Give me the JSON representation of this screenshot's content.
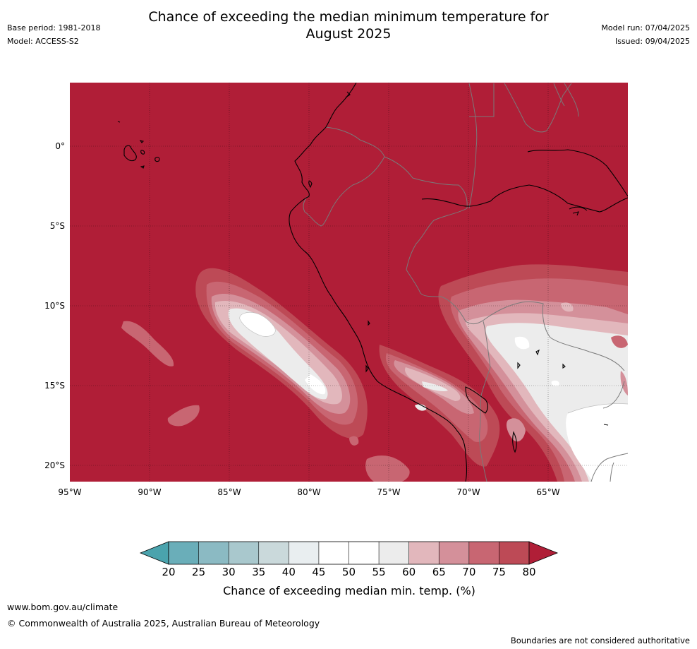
{
  "header": {
    "title_line1": "Chance of exceeding the median minimum temperature for",
    "title_line2": "August 2025",
    "base_period": "Base period: 1981-2018",
    "model": "Model: ACCESS-S2",
    "model_run": "Model run: 07/04/2025",
    "issued": "Issued: 09/04/2025"
  },
  "map": {
    "lat_labels": [
      "0°",
      "5°S",
      "10°S",
      "15°S",
      "20°S"
    ],
    "lon_labels": [
      "95°W",
      "90°W",
      "85°W",
      "80°W",
      "75°W",
      "70°W",
      "65°W"
    ],
    "background_color": "#b01e37"
  },
  "colorbar": {
    "ticks": [
      "20",
      "25",
      "30",
      "35",
      "40",
      "45",
      "50",
      "55",
      "60",
      "65",
      "70",
      "75",
      "80"
    ],
    "colors": [
      "#6aaeb9",
      "#8bbac3",
      "#a9c8cd",
      "#cad9db",
      "#e9eef0",
      "#ffffff",
      "#ffffff",
      "#ececec",
      "#e2b7bc",
      "#d4909a",
      "#c86672",
      "#bd4a56"
    ],
    "low_arrow_color": "#4aa3ad",
    "high_arrow_color": "#b01e37",
    "label": "Chance of exceeding median min. temp. (%)"
  },
  "footer": {
    "website": "www.bom.gov.au/climate",
    "copyright": "© Commonwealth of Australia 2025, Australian Bureau of Meteorology",
    "disclaimer": "Boundaries are not considered authoritative"
  }
}
